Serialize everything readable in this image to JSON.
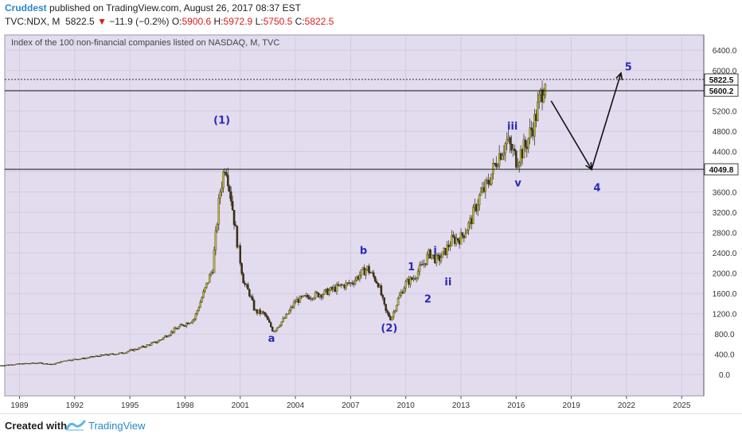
{
  "header": {
    "author": "Cruddest",
    "published": " published on TradingView.com, August 26, 2017 08:37 EST",
    "symbol": "TVC:NDX, M",
    "price": "5822.5",
    "change_arrow": "▼",
    "change": "−11.9 (−0.2%)",
    "o_label": "O:",
    "o_value": "5900.6",
    "h_label": "H:",
    "h_value": "5972.9",
    "l_label": "L:",
    "l_value": "5750.5",
    "c_label": "C:",
    "c_value": "5822.5"
  },
  "chart_data": {
    "type": "line",
    "title": "Index of the 100 non-financial companies listed on NASDAQ, M, TVC",
    "background": "#e3dcef",
    "up_color": "#b5b342",
    "down_color": "#3a3014",
    "x_ticks": [
      "1989",
      "1992",
      "1995",
      "1998",
      "2001",
      "2004",
      "2007",
      "2010",
      "2013",
      "2016",
      "2019",
      "2022",
      "2025"
    ],
    "x_range": [
      1988.2,
      2026.2
    ],
    "y_ticks": [
      "0.0",
      "400.0",
      "800.0",
      "1200.0",
      "1600.0",
      "2000.0",
      "2400.0",
      "2800.0",
      "3200.0",
      "3600.0",
      "4000.0",
      "4400.0",
      "4800.0",
      "5200.0",
      "5600.0",
      "6000.0",
      "6400.0"
    ],
    "y_range": [
      -420,
      6700
    ],
    "series": [
      {
        "x": [
          1988.0,
          1989.0,
          1990.0,
          1990.8,
          1991.5,
          1992.5,
          1993.5,
          1994.5,
          1995.5,
          1996.5,
          1997.5,
          1998.5,
          1999.0,
          1999.5,
          1999.9,
          2000.2,
          2000.5,
          2000.8,
          2001.2,
          2001.5,
          2001.8,
          2002.3,
          2002.8,
          2003.5,
          2004.0,
          2004.8,
          2005.5,
          2006.5,
          2007.0,
          2007.9,
          2008.5,
          2008.9,
          2009.2,
          2009.6,
          2010.0,
          2010.4,
          2011.0,
          2011.3,
          2011.7,
          2012.0,
          2012.5,
          2013.0,
          2013.5,
          2014.0,
          2014.5,
          2015.0,
          2015.5,
          2015.8,
          2016.0,
          2016.5,
          2017.0,
          2017.6
        ],
        "values": [
          180,
          210,
          230,
          200,
          280,
          320,
          380,
          420,
          520,
          650,
          900,
          1100,
          1600,
          2100,
          3600,
          4200,
          3500,
          2700,
          1800,
          1600,
          1250,
          1200,
          850,
          1150,
          1450,
          1550,
          1600,
          1750,
          1800,
          2100,
          1800,
          1250,
          1100,
          1500,
          1800,
          1900,
          2200,
          2400,
          2250,
          2350,
          2650,
          2700,
          3000,
          3500,
          3800,
          4300,
          4600,
          4400,
          4250,
          4500,
          5000,
          5900
        ]
      }
    ],
    "horizontal_lines": [
      {
        "value": 5822.5,
        "label": "5822.5",
        "style": "dotted"
      },
      {
        "value": 5600.2,
        "label": "5600.2",
        "style": "solid"
      },
      {
        "value": 4049.8,
        "label": "4049.8",
        "style": "solid"
      }
    ],
    "projection": [
      {
        "x": 2017.9,
        "y": 5400
      },
      {
        "x": 2020.1,
        "y": 4050
      },
      {
        "x": 2021.7,
        "y": 5950
      }
    ],
    "wave_labels": [
      {
        "text": "(1)",
        "x": 2000.0,
        "y": 4950
      },
      {
        "text": "a",
        "x": 2002.7,
        "y": 650
      },
      {
        "text": "b",
        "x": 2007.7,
        "y": 2380
      },
      {
        "text": "(2)",
        "x": 2009.1,
        "y": 850
      },
      {
        "text": "1",
        "x": 2010.3,
        "y": 2060
      },
      {
        "text": "2",
        "x": 2011.2,
        "y": 1420
      },
      {
        "text": "i",
        "x": 2011.6,
        "y": 2380
      },
      {
        "text": "ii",
        "x": 2012.3,
        "y": 1760
      },
      {
        "text": "iii",
        "x": 2015.8,
        "y": 4830
      },
      {
        "text": "v",
        "x": 2016.1,
        "y": 3710
      },
      {
        "text": "4",
        "x": 2020.4,
        "y": 3620
      },
      {
        "text": "5",
        "x": 2022.1,
        "y": 6000
      }
    ]
  },
  "footer": {
    "created": "Created with",
    "brand": "TradingView"
  }
}
